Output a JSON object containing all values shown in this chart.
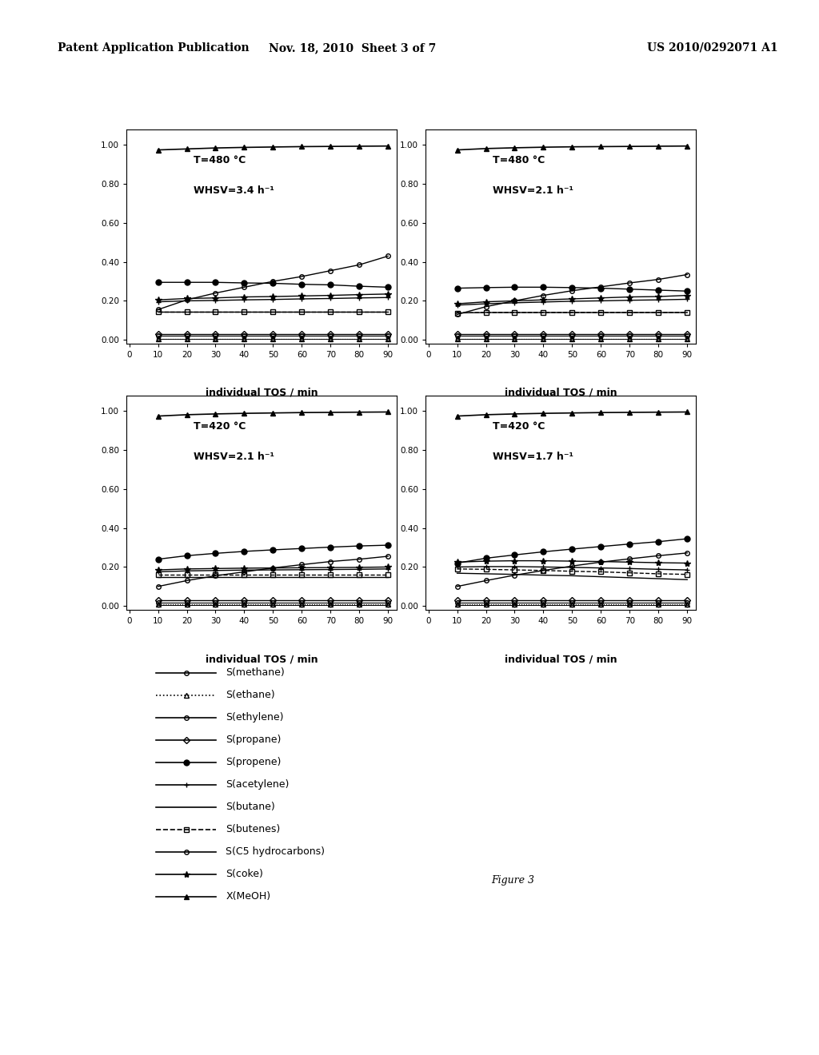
{
  "header_left": "Patent Application Publication",
  "header_mid": "Nov. 18, 2010  Sheet 3 of 7",
  "header_right": "US 2010/0292071 A1",
  "figure_label": "Figure 3",
  "x_ticks": [
    0,
    10,
    20,
    30,
    40,
    50,
    60,
    70,
    80,
    90
  ],
  "x_label": "individual TOS / min",
  "y_ticks": [
    0.0,
    0.2,
    0.4,
    0.6,
    0.8,
    1.0
  ],
  "y_lim": [
    -0.02,
    1.08
  ],
  "subplots": [
    {
      "title_line1": "T=480 °C",
      "title_line2": "WHSV=3.4 h⁻¹",
      "x": [
        10,
        20,
        30,
        40,
        50,
        60,
        70,
        80,
        90
      ],
      "series": {
        "X_MeOH": [
          0.975,
          0.98,
          0.985,
          0.988,
          0.99,
          0.992,
          0.993,
          0.994,
          0.995
        ],
        "S_propene": [
          0.295,
          0.295,
          0.295,
          0.292,
          0.29,
          0.285,
          0.282,
          0.275,
          0.27
        ],
        "S_ethylene": [
          0.155,
          0.205,
          0.24,
          0.27,
          0.3,
          0.325,
          0.355,
          0.385,
          0.43
        ],
        "S_coke": [
          0.205,
          0.212,
          0.215,
          0.22,
          0.222,
          0.225,
          0.228,
          0.232,
          0.235
        ],
        "S_butenes": [
          0.145,
          0.145,
          0.145,
          0.145,
          0.145,
          0.145,
          0.145,
          0.145,
          0.145
        ],
        "S_butane": [
          0.145,
          0.145,
          0.145,
          0.145,
          0.145,
          0.145,
          0.145,
          0.145,
          0.145
        ],
        "S_coke2": [
          0.195,
          0.2,
          0.202,
          0.205,
          0.207,
          0.21,
          0.212,
          0.215,
          0.217
        ],
        "S_propane": [
          0.03,
          0.03,
          0.03,
          0.03,
          0.03,
          0.03,
          0.03,
          0.03,
          0.03
        ],
        "S_methane": [
          0.02,
          0.02,
          0.02,
          0.02,
          0.02,
          0.02,
          0.02,
          0.02,
          0.02
        ],
        "S_ethane": [
          0.005,
          0.005,
          0.005,
          0.005,
          0.005,
          0.005,
          0.005,
          0.005,
          0.005
        ],
        "S_C5": [
          0.005,
          0.005,
          0.005,
          0.005,
          0.005,
          0.005,
          0.005,
          0.005,
          0.005
        ]
      }
    },
    {
      "title_line1": "T=480 °C",
      "title_line2": "WHSV=2.1 h⁻¹",
      "x": [
        10,
        20,
        30,
        40,
        50,
        60,
        70,
        80,
        90
      ],
      "series": {
        "X_MeOH": [
          0.975,
          0.982,
          0.986,
          0.989,
          0.991,
          0.992,
          0.993,
          0.994,
          0.995
        ],
        "S_propene": [
          0.265,
          0.268,
          0.27,
          0.27,
          0.268,
          0.265,
          0.26,
          0.255,
          0.25
        ],
        "S_ethylene": [
          0.13,
          0.17,
          0.2,
          0.228,
          0.252,
          0.272,
          0.292,
          0.31,
          0.335
        ],
        "S_coke": [
          0.185,
          0.195,
          0.2,
          0.205,
          0.21,
          0.215,
          0.22,
          0.222,
          0.228
        ],
        "S_butenes": [
          0.138,
          0.14,
          0.14,
          0.14,
          0.14,
          0.14,
          0.14,
          0.14,
          0.14
        ],
        "S_butane": [
          0.138,
          0.14,
          0.14,
          0.14,
          0.14,
          0.14,
          0.14,
          0.14,
          0.14
        ],
        "S_coke2": [
          0.178,
          0.185,
          0.19,
          0.194,
          0.198,
          0.2,
          0.203,
          0.205,
          0.208
        ],
        "S_propane": [
          0.03,
          0.03,
          0.03,
          0.03,
          0.03,
          0.03,
          0.03,
          0.03,
          0.03
        ],
        "S_methane": [
          0.02,
          0.02,
          0.02,
          0.02,
          0.02,
          0.02,
          0.02,
          0.02,
          0.02
        ],
        "S_ethane": [
          0.005,
          0.005,
          0.005,
          0.005,
          0.005,
          0.005,
          0.005,
          0.005,
          0.005
        ],
        "S_C5": [
          0.005,
          0.005,
          0.005,
          0.005,
          0.005,
          0.005,
          0.005,
          0.005,
          0.005
        ]
      }
    },
    {
      "title_line1": "T=420 °C",
      "title_line2": "WHSV=2.1 h⁻¹",
      "x": [
        10,
        20,
        30,
        40,
        50,
        60,
        70,
        80,
        90
      ],
      "series": {
        "X_MeOH": [
          0.975,
          0.982,
          0.986,
          0.989,
          0.991,
          0.993,
          0.994,
          0.995,
          0.996
        ],
        "S_propene": [
          0.24,
          0.258,
          0.27,
          0.28,
          0.288,
          0.295,
          0.302,
          0.308,
          0.312
        ],
        "S_ethylene": [
          0.1,
          0.13,
          0.155,
          0.175,
          0.195,
          0.212,
          0.228,
          0.24,
          0.255
        ],
        "S_coke": [
          0.185,
          0.19,
          0.192,
          0.194,
          0.195,
          0.196,
          0.197,
          0.198,
          0.2
        ],
        "S_butenes": [
          0.16,
          0.16,
          0.16,
          0.16,
          0.16,
          0.16,
          0.16,
          0.16,
          0.16
        ],
        "S_butane": [
          0.148,
          0.148,
          0.148,
          0.148,
          0.148,
          0.148,
          0.148,
          0.148,
          0.148
        ],
        "S_coke2": [
          0.175,
          0.18,
          0.182,
          0.184,
          0.185,
          0.186,
          0.187,
          0.188,
          0.19
        ],
        "S_propane": [
          0.03,
          0.03,
          0.03,
          0.03,
          0.03,
          0.03,
          0.03,
          0.03,
          0.03
        ],
        "S_methane": [
          0.018,
          0.018,
          0.018,
          0.018,
          0.018,
          0.018,
          0.018,
          0.018,
          0.018
        ],
        "S_ethane": [
          0.008,
          0.008,
          0.008,
          0.008,
          0.008,
          0.008,
          0.008,
          0.008,
          0.008
        ],
        "S_C5": [
          0.005,
          0.005,
          0.005,
          0.005,
          0.005,
          0.005,
          0.005,
          0.005,
          0.005
        ]
      }
    },
    {
      "title_line1": "T=420 °C",
      "title_line2": "WHSV=1.7 h⁻¹",
      "x": [
        10,
        20,
        30,
        40,
        50,
        60,
        70,
        80,
        90
      ],
      "series": {
        "X_MeOH": [
          0.975,
          0.982,
          0.986,
          0.989,
          0.991,
          0.993,
          0.994,
          0.995,
          0.996
        ],
        "S_propene": [
          0.22,
          0.245,
          0.262,
          0.278,
          0.292,
          0.305,
          0.318,
          0.33,
          0.345
        ],
        "S_ethylene": [
          0.1,
          0.13,
          0.158,
          0.182,
          0.205,
          0.225,
          0.242,
          0.258,
          0.272
        ],
        "S_coke": [
          0.225,
          0.23,
          0.232,
          0.232,
          0.23,
          0.228,
          0.225,
          0.222,
          0.22
        ],
        "S_butenes": [
          0.19,
          0.188,
          0.185,
          0.182,
          0.178,
          0.175,
          0.17,
          0.165,
          0.162
        ],
        "S_butane": [
          0.168,
          0.165,
          0.162,
          0.158,
          0.155,
          0.15,
          0.145,
          0.14,
          0.135
        ],
        "S_coke2": [
          0.2,
          0.202,
          0.202,
          0.2,
          0.198,
          0.195,
          0.192,
          0.188,
          0.185
        ],
        "S_propane": [
          0.03,
          0.03,
          0.03,
          0.03,
          0.03,
          0.03,
          0.03,
          0.03,
          0.03
        ],
        "S_methane": [
          0.018,
          0.018,
          0.018,
          0.018,
          0.018,
          0.018,
          0.018,
          0.018,
          0.018
        ],
        "S_ethane": [
          0.008,
          0.008,
          0.008,
          0.008,
          0.008,
          0.008,
          0.008,
          0.008,
          0.008
        ],
        "S_C5": [
          0.005,
          0.005,
          0.005,
          0.005,
          0.005,
          0.005,
          0.005,
          0.005,
          0.005
        ]
      }
    }
  ],
  "legend_entries": [
    {
      "label": "S(methane)",
      "key": "S_methane",
      "ls": "-",
      "marker": "o",
      "fs": "none",
      "ms": 4
    },
    {
      "label": "S(ethane)",
      "key": "S_ethane",
      "ls": ":",
      "marker": "^",
      "fs": "none",
      "ms": 4
    },
    {
      "label": "S(ethylene)",
      "key": "S_ethylene",
      "ls": "-",
      "marker": "o",
      "fs": "none",
      "ms": 4
    },
    {
      "label": "S(propane)",
      "key": "S_propane",
      "ls": "-",
      "marker": "D",
      "fs": "none",
      "ms": 4
    },
    {
      "label": "S(propene)",
      "key": "S_propene",
      "ls": "-",
      "marker": "o",
      "fs": "full",
      "ms": 5
    },
    {
      "label": "S(acetylene)",
      "key": "S_coke2",
      "ls": "-",
      "marker": "+",
      "fs": "none",
      "ms": 5
    },
    {
      "label": "S(butane)",
      "key": "S_butane",
      "ls": "-",
      "marker": null,
      "fs": "none",
      "ms": 0
    },
    {
      "label": "S(butenes)",
      "key": "S_butenes",
      "ls": "--",
      "marker": "s",
      "fs": "none",
      "ms": 4
    },
    {
      "label": "S(C5 hydrocarbons)",
      "key": "S_C5",
      "ls": "-",
      "marker": "o",
      "fs": "none",
      "ms": 4
    },
    {
      "label": "S(coke)",
      "key": "S_coke",
      "ls": "-",
      "marker": "*",
      "fs": "full",
      "ms": 6
    },
    {
      "label": "X(MeOH)",
      "key": "X_MeOH",
      "ls": "-",
      "marker": "^",
      "fs": "full",
      "ms": 5
    }
  ]
}
